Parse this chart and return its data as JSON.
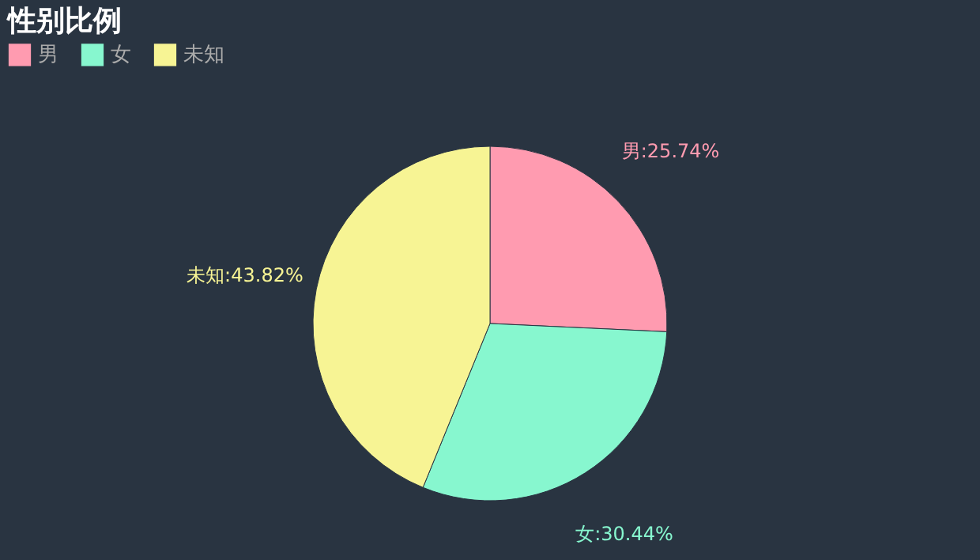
{
  "chart_data": {
    "type": "pie",
    "title": "性别比例",
    "categories": [
      "男",
      "女",
      "未知"
    ],
    "values": [
      25.74,
      30.44,
      43.82
    ],
    "colors": [
      "#ff9bb0",
      "#87f7cf",
      "#f7f494"
    ],
    "value_labels": [
      "男:25.74%",
      "女:30.44%",
      "未知:43.82%"
    ],
    "legend": "top"
  }
}
